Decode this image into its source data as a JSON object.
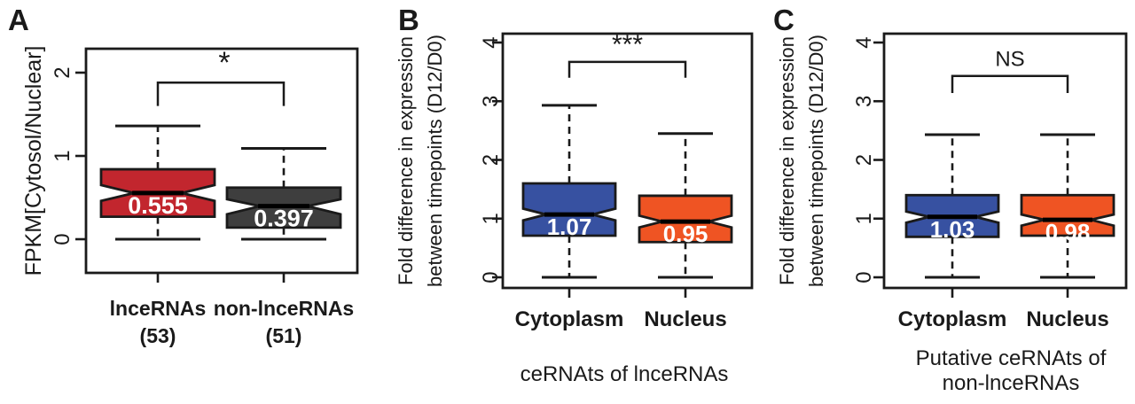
{
  "colors": {
    "background": "#ffffff",
    "frame": "#1a1a1a",
    "box_red": "#c2262e",
    "box_dark": "#3e3e3e",
    "box_blue": "#3751a1",
    "box_orange": "#ef5423",
    "median_line": "#000000",
    "median_label_text": "#ffffff"
  },
  "chart_data": [
    {
      "type": "boxplot",
      "panel_label": "A",
      "ylabel_lines": [
        "FPKM[Cytosol/Nuclear]"
      ],
      "yticks": [
        0,
        1,
        2
      ],
      "ylim": [
        -0.4,
        2.29
      ],
      "grid": false,
      "legend": null,
      "categories": [
        [
          "lnceRNAs",
          "(53)"
        ],
        [
          "non-lnceRNAs",
          "(51)"
        ]
      ],
      "x_title_lines": [],
      "boxes": [
        {
          "name": "lnceRNAs (53)",
          "color_key": "box_red",
          "whisker_low": 0.0,
          "q1": 0.27,
          "notch_low": 0.46,
          "median": 0.555,
          "median_label": "0.555",
          "notch_high": 0.65,
          "q3": 0.84,
          "whisker_high": 1.36
        },
        {
          "name": "non-lnceRNAs (51)",
          "color_key": "box_dark",
          "whisker_low": 0.0,
          "q1": 0.14,
          "notch_low": 0.3,
          "median": 0.397,
          "median_label": "0.397",
          "notch_high": 0.48,
          "q3": 0.62,
          "whisker_high": 1.09
        }
      ],
      "significance": {
        "label": "*",
        "bar_value": 1.88,
        "drop_value": 1.6,
        "text_value": 2.0
      }
    },
    {
      "type": "boxplot",
      "panel_label": "B",
      "ylabel_lines": [
        "Fold difference in expression",
        "between timepoints (D12/D0)"
      ],
      "yticks": [
        0,
        1,
        2,
        3,
        4
      ],
      "ylim": [
        -0.38,
        4.15
      ],
      "grid": false,
      "legend": null,
      "categories": [
        [
          "Cytoplasm"
        ],
        [
          "Nucleus"
        ]
      ],
      "x_title_lines": [
        "ceRNAts of lnceRNAs"
      ],
      "boxes": [
        {
          "name": "Cytoplasm",
          "color_key": "box_blue",
          "whisker_low": 0.0,
          "q1": 0.71,
          "notch_low": 0.97,
          "median": 1.07,
          "median_label": "1.07",
          "notch_high": 1.17,
          "q3": 1.6,
          "whisker_high": 2.93
        },
        {
          "name": "Nucleus",
          "color_key": "box_orange",
          "whisker_low": 0.0,
          "q1": 0.6,
          "notch_low": 0.85,
          "median": 0.95,
          "median_label": "0.95",
          "notch_high": 1.05,
          "q3": 1.39,
          "whisker_high": 2.45
        }
      ],
      "significance": {
        "label": "***",
        "bar_value": 3.67,
        "drop_value": 3.4,
        "text_value": 3.82
      }
    },
    {
      "type": "boxplot",
      "panel_label": "C",
      "ylabel_lines": [
        "Fold difference in expression",
        "between timepoints (D12/D0)"
      ],
      "yticks": [
        0,
        1,
        2,
        3,
        4
      ],
      "ylim": [
        -0.38,
        4.15
      ],
      "grid": false,
      "legend": null,
      "categories": [
        [
          "Cytoplasm"
        ],
        [
          "Nucleus"
        ]
      ],
      "x_title_lines": [
        "Putative ceRNAts of",
        "non-lnceRNAs"
      ],
      "boxes": [
        {
          "name": "Cytoplasm",
          "color_key": "box_blue",
          "whisker_low": 0.0,
          "q1": 0.69,
          "notch_low": 0.93,
          "median": 1.03,
          "median_label": "1.03",
          "notch_high": 1.12,
          "q3": 1.4,
          "whisker_high": 2.43
        },
        {
          "name": "Nucleus",
          "color_key": "box_orange",
          "whisker_low": 0.0,
          "q1": 0.71,
          "notch_low": 0.88,
          "median": 0.98,
          "median_label": "0.98",
          "notch_high": 1.07,
          "q3": 1.4,
          "whisker_high": 2.43
        }
      ],
      "significance": {
        "label": "NS",
        "bar_value": 3.43,
        "drop_value": 3.14,
        "text_value": 3.6
      }
    }
  ]
}
